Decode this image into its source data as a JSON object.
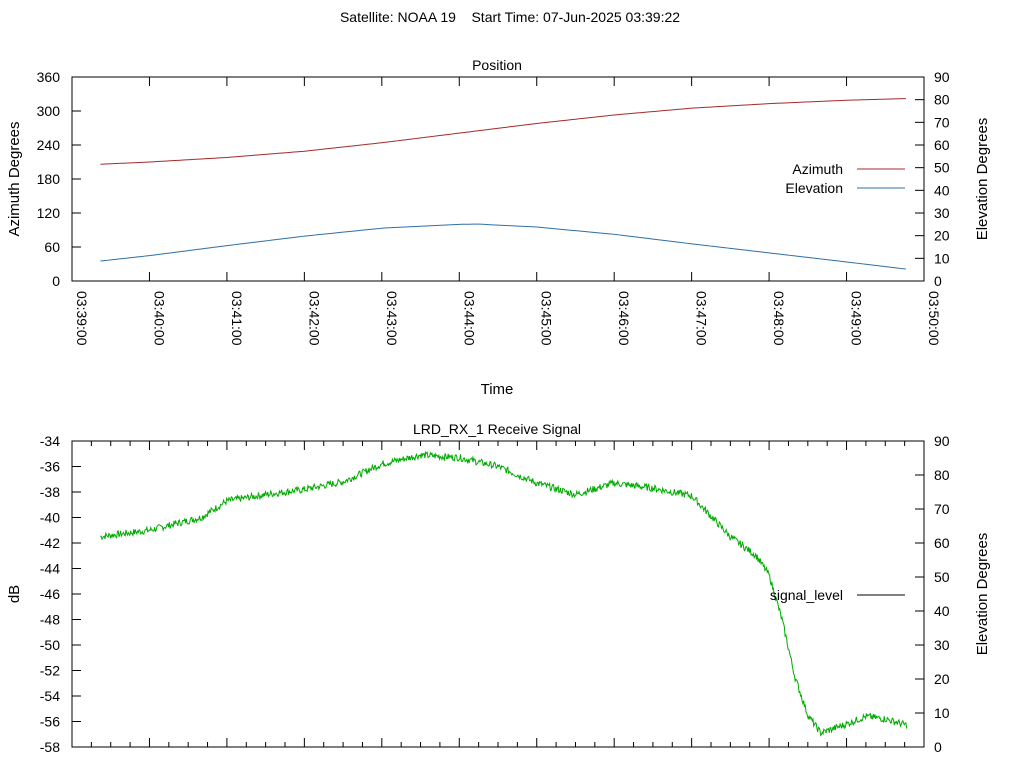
{
  "figure": {
    "title": "Satellite: NOAA 19    Start Time: 07-Jun-2025 03:39:22"
  },
  "chart_data": [
    {
      "type": "line",
      "title": "Position",
      "xlabel": "Time",
      "ylabel": "Azimuth Degrees",
      "y2label": "Elevation Degrees",
      "xlim": [
        "03:39:00",
        "03:50:00"
      ],
      "x_ticks": [
        "03:39:00",
        "03:40:00",
        "03:41:00",
        "03:42:00",
        "03:43:00",
        "03:44:00",
        "03:45:00",
        "03:46:00",
        "03:47:00",
        "03:48:00",
        "03:49:00",
        "03:50:00"
      ],
      "ylim": [
        0,
        360
      ],
      "y_ticks": [
        "0",
        "60",
        "120",
        "180",
        "240",
        "300",
        "360"
      ],
      "y2lim": [
        0,
        90
      ],
      "y2_ticks": [
        "0",
        "10",
        "20",
        "30",
        "40",
        "50",
        "60",
        "70",
        "80",
        "90"
      ],
      "legend_position": "right",
      "series": [
        {
          "name": "Azimuth",
          "axis": "y",
          "color": "#a52a2a",
          "x": [
            "03:39:22",
            "03:40:00",
            "03:41:00",
            "03:42:00",
            "03:43:00",
            "03:44:00",
            "03:45:00",
            "03:46:00",
            "03:47:00",
            "03:48:00",
            "03:49:00",
            "03:49:47"
          ],
          "values": [
            206,
            210,
            218,
            229,
            244,
            261,
            278,
            293,
            305,
            313,
            319,
            322
          ]
        },
        {
          "name": "Elevation",
          "axis": "y2",
          "color": "#2f6fa6",
          "x": [
            "03:39:22",
            "03:40:00",
            "03:41:00",
            "03:42:00",
            "03:43:00",
            "03:44:00",
            "03:44:15",
            "03:45:00",
            "03:46:00",
            "03:47:00",
            "03:48:00",
            "03:49:00",
            "03:49:47"
          ],
          "values": [
            8.8,
            11.2,
            15.6,
            19.8,
            23.3,
            25.0,
            25.1,
            23.8,
            20.6,
            16.4,
            12.4,
            8.4,
            5.2
          ]
        }
      ]
    },
    {
      "type": "line",
      "title": "LRD_RX_1 Receive Signal",
      "ylabel": "dB",
      "y2label": "Elevation Degrees",
      "xlim": [
        "03:39:00",
        "03:50:00"
      ],
      "ylim": [
        -58,
        -34
      ],
      "y_ticks": [
        "-58",
        "-56",
        "-54",
        "-52",
        "-50",
        "-48",
        "-46",
        "-44",
        "-42",
        "-40",
        "-38",
        "-36",
        "-34"
      ],
      "y2lim": [
        0,
        90
      ],
      "y2_ticks": [
        "0",
        "10",
        "20",
        "30",
        "40",
        "50",
        "60",
        "70",
        "80",
        "90"
      ],
      "legend_position": "right",
      "series": [
        {
          "name": "signal_level",
          "axis": "y",
          "color": "#00aa00",
          "x": [
            "03:39:22",
            "03:40:00",
            "03:40:40",
            "03:41:00",
            "03:41:30",
            "03:42:00",
            "03:42:30",
            "03:43:00",
            "03:43:30",
            "03:44:00",
            "03:44:30",
            "03:45:00",
            "03:45:30",
            "03:46:00",
            "03:46:30",
            "03:47:00",
            "03:47:30",
            "03:47:50",
            "03:48:00",
            "03:48:10",
            "03:48:20",
            "03:48:30",
            "03:48:40",
            "03:49:00",
            "03:49:15",
            "03:49:30",
            "03:49:47"
          ],
          "values": [
            -41.5,
            -41.0,
            -40.0,
            -38.7,
            -38.2,
            -37.8,
            -37.2,
            -35.8,
            -35.1,
            -35.3,
            -36.0,
            -37.3,
            -38.2,
            -37.3,
            -37.7,
            -38.3,
            -41.5,
            -43.0,
            -44.5,
            -48.0,
            -52.5,
            -55.5,
            -56.9,
            -56.2,
            -55.6,
            -55.8,
            -56.3
          ]
        }
      ]
    }
  ]
}
